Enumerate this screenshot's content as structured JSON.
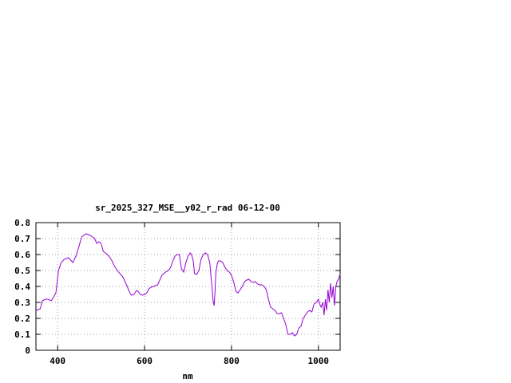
{
  "chart_data": {
    "type": "line",
    "title": "sr_2025_327_MSE__y02_r_rad 06-12-00",
    "xlabel": "nm",
    "ylabel": "",
    "xlim": [
      350,
      1050
    ],
    "ylim": [
      0,
      0.8
    ],
    "xticks": [
      400,
      600,
      800,
      1000
    ],
    "xtick_labels": [
      "400",
      "600",
      "800",
      "1000"
    ],
    "yticks": [
      0,
      0.1,
      0.2,
      0.3,
      0.4,
      0.5,
      0.6,
      0.7,
      0.8
    ],
    "ytick_labels": [
      "0",
      "0.1",
      "0.2",
      "0.3",
      "0.4",
      "0.5",
      "0.6",
      "0.7",
      "0.8"
    ],
    "grid": true,
    "line_color": "#9400d3",
    "series": [
      {
        "x": [
          350,
          360,
          365,
          372,
          378,
          385,
          390,
          396,
          402,
          408,
          415,
          425,
          435,
          442,
          448,
          455,
          465,
          475,
          480,
          485,
          490,
          495,
          500,
          505,
          510,
          518,
          525,
          530,
          540,
          550,
          560,
          566,
          570,
          575,
          578,
          580,
          582,
          585,
          590,
          595,
          600,
          605,
          610,
          615,
          620,
          630,
          640,
          648,
          655,
          660,
          665,
          670,
          675,
          680,
          685,
          690,
          695,
          700,
          705,
          708,
          712,
          715,
          720,
          725,
          730,
          735,
          740,
          745,
          750,
          755,
          758,
          760,
          762,
          764,
          766,
          768,
          770,
          775,
          780,
          785,
          790,
          795,
          800,
          805,
          810,
          815,
          820,
          825,
          830,
          835,
          840,
          845,
          850,
          855,
          860,
          865,
          870,
          875,
          880,
          885,
          890,
          895,
          900,
          905,
          910,
          915,
          920,
          925,
          930,
          935,
          940,
          945,
          950,
          955,
          960,
          965,
          970,
          975,
          980,
          985,
          990,
          995,
          1000,
          1003,
          1006,
          1010,
          1013,
          1016,
          1019,
          1022,
          1025,
          1028,
          1031,
          1034,
          1037,
          1040,
          1043,
          1047,
          1050
        ],
        "y": [
          0.25,
          0.26,
          0.31,
          0.32,
          0.32,
          0.31,
          0.33,
          0.36,
          0.5,
          0.55,
          0.57,
          0.58,
          0.55,
          0.59,
          0.64,
          0.71,
          0.73,
          0.72,
          0.71,
          0.7,
          0.67,
          0.68,
          0.67,
          0.62,
          0.61,
          0.59,
          0.56,
          0.53,
          0.49,
          0.46,
          0.4,
          0.36,
          0.345,
          0.35,
          0.36,
          0.37,
          0.375,
          0.37,
          0.35,
          0.345,
          0.35,
          0.36,
          0.385,
          0.395,
          0.4,
          0.41,
          0.47,
          0.49,
          0.5,
          0.52,
          0.56,
          0.59,
          0.6,
          0.6,
          0.51,
          0.49,
          0.55,
          0.59,
          0.61,
          0.6,
          0.56,
          0.48,
          0.475,
          0.5,
          0.57,
          0.6,
          0.61,
          0.6,
          0.55,
          0.4,
          0.3,
          0.28,
          0.36,
          0.48,
          0.52,
          0.55,
          0.56,
          0.56,
          0.55,
          0.52,
          0.5,
          0.49,
          0.47,
          0.43,
          0.37,
          0.36,
          0.38,
          0.4,
          0.43,
          0.44,
          0.445,
          0.43,
          0.425,
          0.43,
          0.415,
          0.41,
          0.41,
          0.4,
          0.38,
          0.32,
          0.27,
          0.26,
          0.25,
          0.23,
          0.23,
          0.235,
          0.2,
          0.16,
          0.1,
          0.1,
          0.11,
          0.09,
          0.1,
          0.14,
          0.15,
          0.2,
          0.22,
          0.24,
          0.25,
          0.24,
          0.29,
          0.3,
          0.32,
          0.29,
          0.27,
          0.3,
          0.22,
          0.32,
          0.25,
          0.38,
          0.3,
          0.42,
          0.33,
          0.4,
          0.28,
          0.4,
          0.43,
          0.45,
          0.48
        ]
      }
    ]
  }
}
